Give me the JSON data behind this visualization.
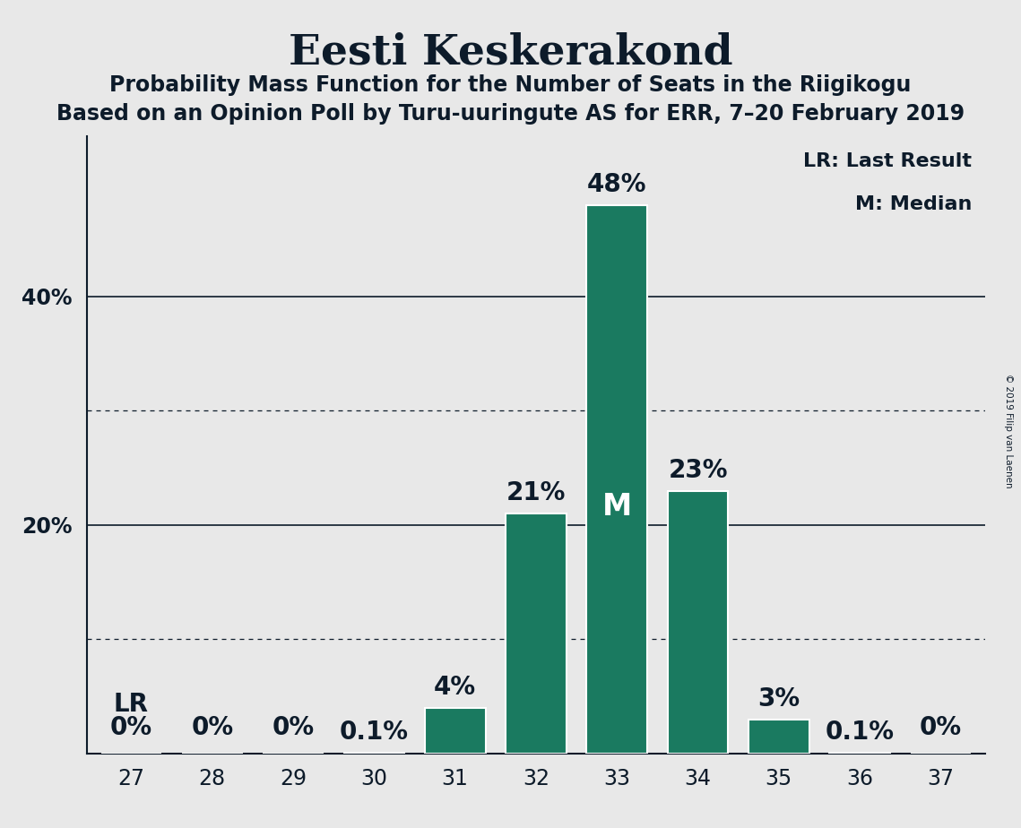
{
  "title": "Eesti Keskerakond",
  "subtitle1": "Probability Mass Function for the Number of Seats in the Riigikogu",
  "subtitle2": "Based on an Opinion Poll by Turu-uuringute AS for ERR, 7–20 February 2019",
  "copyright": "© 2019 Filip van Laenen",
  "categories": [
    27,
    28,
    29,
    30,
    31,
    32,
    33,
    34,
    35,
    36,
    37
  ],
  "values": [
    0.0,
    0.0,
    0.0,
    0.1,
    4.0,
    21.0,
    48.0,
    23.0,
    3.0,
    0.1,
    0.0
  ],
  "labels": [
    "0%",
    "0%",
    "0%",
    "0.1%",
    "4%",
    "21%",
    "48%",
    "23%",
    "3%",
    "0.1%",
    "0%"
  ],
  "bar_color": "#1a7a60",
  "background_color": "#e8e8e8",
  "text_color": "#0d1b2a",
  "median_seat": 33,
  "lr_seat": 27,
  "ylim": [
    0,
    54
  ],
  "yticks": [
    20,
    40
  ],
  "ytick_labels": [
    "20%",
    "40%"
  ],
  "solid_gridlines": [
    20,
    40
  ],
  "dotted_gridlines": [
    10,
    30
  ],
  "legend_lr": "LR: Last Result",
  "legend_m": "M: Median",
  "title_fontsize": 34,
  "subtitle_fontsize": 17,
  "label_fontsize": 16,
  "tick_fontsize": 17,
  "annotation_fontsize": 20,
  "lr_annotation_fontsize": 20,
  "m_fontsize": 24
}
